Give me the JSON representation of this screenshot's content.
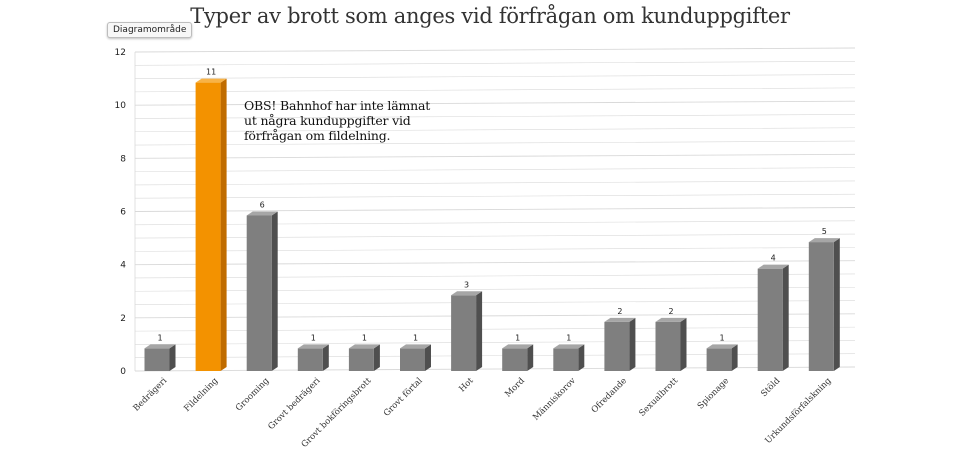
{
  "chart_data": {
    "type": "bar",
    "title": "Typer av brott som anges vid förfrågan om kunduppgifter",
    "area_label": "Diagramområde",
    "annotation": "OBS! Bahnhof har inte lämnat ut några kunduppgifter vid förfrågan om fildelning.",
    "categories": [
      "Bedrägeri",
      "Fildelning",
      "Grooming",
      "Grovt bedrägeri",
      "Grovt bokföringsbrott",
      "Grovt förtal",
      "Hot",
      "Mord",
      "Människorov",
      "Ofredande",
      "Sexualbrott",
      "Spionage",
      "Stöld",
      "Urkundsförfalskning"
    ],
    "values": [
      1,
      11,
      6,
      1,
      1,
      1,
      3,
      1,
      1,
      2,
      2,
      1,
      4,
      5
    ],
    "data_labels": [
      "1",
      "11",
      "6",
      "1",
      "1",
      "1",
      "3",
      "1",
      "1",
      "2",
      "2",
      "1",
      "4",
      "5"
    ],
    "highlight_index": 1,
    "yticks": [
      "0",
      "2",
      "4",
      "6",
      "8",
      "10",
      "12"
    ],
    "ylim": [
      0,
      12
    ],
    "grid": true,
    "legend": "none",
    "colors": {
      "bar": "#7f7f7f",
      "bar_side": "#4f4f4f",
      "bar_top": "#a6a6a6",
      "highlight": "#f39200",
      "highlight_side": "#c06c00",
      "highlight_top": "#f8b347",
      "grid": "#d9d9d9"
    }
  }
}
